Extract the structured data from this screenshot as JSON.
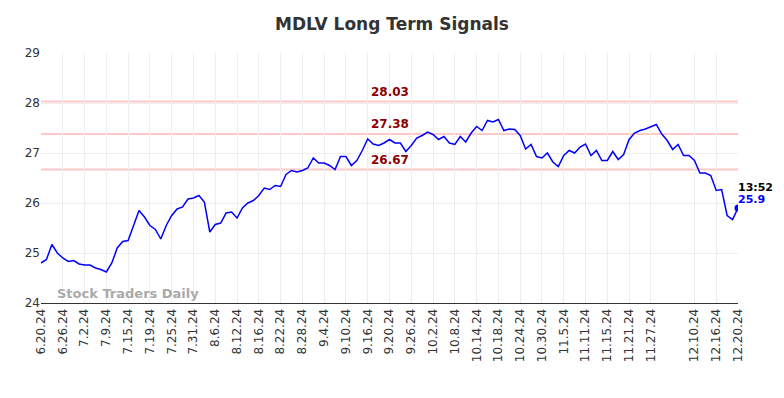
{
  "chart_data": {
    "type": "line",
    "title": "MDLV Long Term Signals",
    "watermark": "Stock Traders Daily",
    "categories": [
      "6.20.24",
      null,
      null,
      null,
      "6.26.24",
      null,
      null,
      null,
      "7.2.24",
      null,
      null,
      null,
      "7.9.24",
      null,
      null,
      null,
      "7.15.24",
      null,
      null,
      null,
      "7.19.24",
      null,
      null,
      null,
      "7.25.24",
      null,
      null,
      null,
      "7.31.24",
      null,
      null,
      null,
      "8.6.24",
      null,
      null,
      null,
      "8.12.24",
      null,
      null,
      null,
      "8.16.24",
      null,
      null,
      null,
      "8.22.24",
      null,
      null,
      null,
      "8.28.24",
      null,
      null,
      null,
      "9.4.24",
      null,
      null,
      null,
      "9.10.24",
      null,
      null,
      null,
      "9.16.24",
      null,
      null,
      null,
      "9.20.24",
      null,
      null,
      null,
      "9.26.24",
      null,
      null,
      null,
      "10.2.24",
      null,
      null,
      null,
      "10.8.24",
      null,
      null,
      null,
      "10.14.24",
      null,
      null,
      null,
      "10.18.24",
      null,
      null,
      null,
      "10.24.24",
      null,
      null,
      null,
      "10.30.24",
      null,
      null,
      null,
      "11.5.24",
      null,
      null,
      null,
      "11.11.24",
      null,
      null,
      null,
      "11.15.24",
      null,
      null,
      null,
      "11.21.24",
      null,
      null,
      null,
      "11.27.24",
      null,
      null,
      null,
      null,
      null,
      null,
      null,
      "12.10.24",
      null,
      null,
      null,
      "12.16.24",
      null,
      null,
      null,
      "12.20.24"
    ],
    "values": [
      24.8,
      24.87,
      25.17,
      25.0,
      24.9,
      24.83,
      24.85,
      24.78,
      24.76,
      24.76,
      24.7,
      24.67,
      24.62,
      24.8,
      25.1,
      25.23,
      25.25,
      25.55,
      25.85,
      25.72,
      25.55,
      25.47,
      25.28,
      25.55,
      25.75,
      25.88,
      25.92,
      26.08,
      26.1,
      26.15,
      26.02,
      25.42,
      25.57,
      25.6,
      25.8,
      25.82,
      25.7,
      25.9,
      26.0,
      26.05,
      26.15,
      26.3,
      26.27,
      26.35,
      26.33,
      26.57,
      26.65,
      26.62,
      26.65,
      26.7,
      26.9,
      26.8,
      26.8,
      26.75,
      26.67,
      26.93,
      26.93,
      26.75,
      26.85,
      27.05,
      27.28,
      27.18,
      27.15,
      27.2,
      27.27,
      27.2,
      27.2,
      27.03,
      27.15,
      27.3,
      27.35,
      27.42,
      27.37,
      27.27,
      27.33,
      27.2,
      27.17,
      27.33,
      27.22,
      27.4,
      27.53,
      27.45,
      27.65,
      27.62,
      27.67,
      27.45,
      27.48,
      27.47,
      27.35,
      27.08,
      27.17,
      26.93,
      26.9,
      27.0,
      26.82,
      26.73,
      26.95,
      27.05,
      27.0,
      27.12,
      27.18,
      26.95,
      27.05,
      26.85,
      26.85,
      27.03,
      26.87,
      26.97,
      27.27,
      27.4,
      27.45,
      27.48,
      27.52,
      27.57,
      27.38,
      27.25,
      27.07,
      27.17,
      26.95,
      26.95,
      26.85,
      26.6,
      26.6,
      26.55,
      26.25,
      26.27,
      25.75,
      25.67,
      25.9
    ],
    "color": "#0000ff",
    "ylim": [
      24,
      29
    ],
    "yticks": [
      24,
      25,
      26,
      27,
      28,
      29
    ],
    "grid": true,
    "signal_levels": [
      28.03,
      27.38,
      26.67
    ],
    "last_point": {
      "time": "13:52",
      "value": 25.9
    }
  }
}
